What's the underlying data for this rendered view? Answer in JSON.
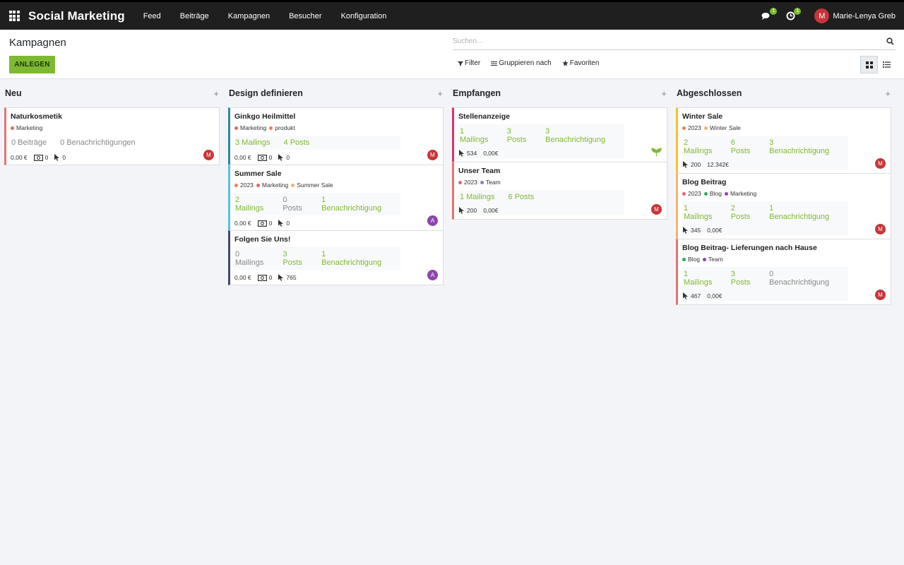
{
  "app": {
    "brand": "Social Marketing",
    "menu": [
      "Feed",
      "Beiträge",
      "Kampagnen",
      "Besucher",
      "Konfiguration"
    ],
    "messages_count": "1",
    "activities_count": "1",
    "user_initial": "M",
    "user_name": "Marie-Lenya Greb"
  },
  "page": {
    "title": "Kampagnen",
    "create_label": "ANLEGEN",
    "search_placeholder": "Suchen...",
    "filter_label": "Filter",
    "group_label": "Gruppieren nach",
    "favorites_label": "Favoriten"
  },
  "columns": [
    {
      "name": "Neu",
      "cards": [
        {
          "name": "Naturkosmetik",
          "tags": [
            {
              "label": "Marketing",
              "color": "#e06666"
            }
          ],
          "stats": [
            "0 Beiträge",
            "0 Benachrichtigungen"
          ],
          "amount": "0,00 €",
          "money": "0",
          "clicks": "0",
          "avatar": "M",
          "accent": "#e57373"
        }
      ]
    },
    {
      "name": "Design definieren",
      "cards": [
        {
          "name": "Ginkgo Heilmittel",
          "tags": [
            {
              "label": "Marketing",
              "color": "#e06666"
            },
            {
              "label": "produkt",
              "color": "#f0804f"
            }
          ],
          "stats": [
            "3 Mailings",
            "4 Posts"
          ],
          "amount": "0,00 €",
          "money": "0",
          "clicks": "0",
          "avatar": "M",
          "accent": "#2d8a9c"
        },
        {
          "name": "Summer Sale",
          "tags": [
            {
              "label": "2023",
              "color": "#f0804f"
            },
            {
              "label": "Marketing",
              "color": "#e06666"
            },
            {
              "label": "Summer Sale",
              "color": "#f6b26b"
            }
          ],
          "stats": [
            "2 Mailings",
            "0 Posts",
            "1 Benachrichtigung"
          ],
          "amount": "0,00 €",
          "money": "0",
          "clicks": "0",
          "avatar": "A",
          "accent": "#5bc0de"
        },
        {
          "name": "Folgen Sie Uns!",
          "stats": [
            "0 Mailings",
            "3 Posts",
            "1 Benachrichtigung"
          ],
          "amount": "0,00 €",
          "money": "0",
          "clicks": "765",
          "avatar": "A",
          "accent": "#3d4a6b"
        }
      ]
    },
    {
      "name": "Empfangen",
      "cards": [
        {
          "name": "Stellenanzeige",
          "stats": [
            "1 Mailings",
            "3 Posts",
            "3 Benachrichtigung"
          ],
          "clicks": "534",
          "revenue": "0,00€",
          "icon": "ginkgo-leaf-icon",
          "accent": "#d6336c"
        },
        {
          "name": "Unser Team",
          "tags": [
            {
              "label": "2023",
              "color": "#e06666"
            },
            {
              "label": "Team",
              "color": "#8e7cc3"
            }
          ],
          "stats": [
            "1 Mailings",
            "6 Posts"
          ],
          "clicks": "200",
          "revenue": "0,00€",
          "avatar": "M",
          "accent": "#e57373"
        }
      ]
    },
    {
      "name": "Abgeschlossen",
      "cards": [
        {
          "name": "Winter Sale",
          "tags": [
            {
              "label": "2023",
              "color": "#f0804f"
            },
            {
              "label": "Winter Sale",
              "color": "#f6b26b"
            }
          ],
          "stats": [
            "2 Mailings",
            "6 Posts",
            "3 Benachrichtigung"
          ],
          "clicks": "200",
          "revenue": "12.342€",
          "avatar": "M",
          "accent": "#f1c232"
        },
        {
          "name": "Blog Beitrag",
          "tags": [
            {
              "label": "2023",
              "color": "#e06666"
            },
            {
              "label": "Blog",
              "color": "#27ae60"
            },
            {
              "label": "Marketing",
              "color": "#8e44ad"
            }
          ],
          "stats": [
            "1 Mailings",
            "2 Posts",
            "1 Benachrichtigung"
          ],
          "clicks": "345",
          "revenue": "0,00€",
          "avatar": "M",
          "accent": "#f6b26b"
        },
        {
          "name": "Blog Beitrag- Lieferungen nach Hause",
          "tags": [
            {
              "label": "Blog",
              "color": "#27ae60"
            },
            {
              "label": "Team",
              "color": "#8e44ad"
            }
          ],
          "stats": [
            "1 Mailings",
            "3 Posts",
            "0 Benachrichtigung"
          ],
          "clicks": "467",
          "revenue": "0,00€",
          "avatar": "M",
          "accent": "#e57373"
        }
      ]
    }
  ],
  "colors": {
    "accent_green": "#7fb932",
    "topbar": "#1f1f1f"
  }
}
